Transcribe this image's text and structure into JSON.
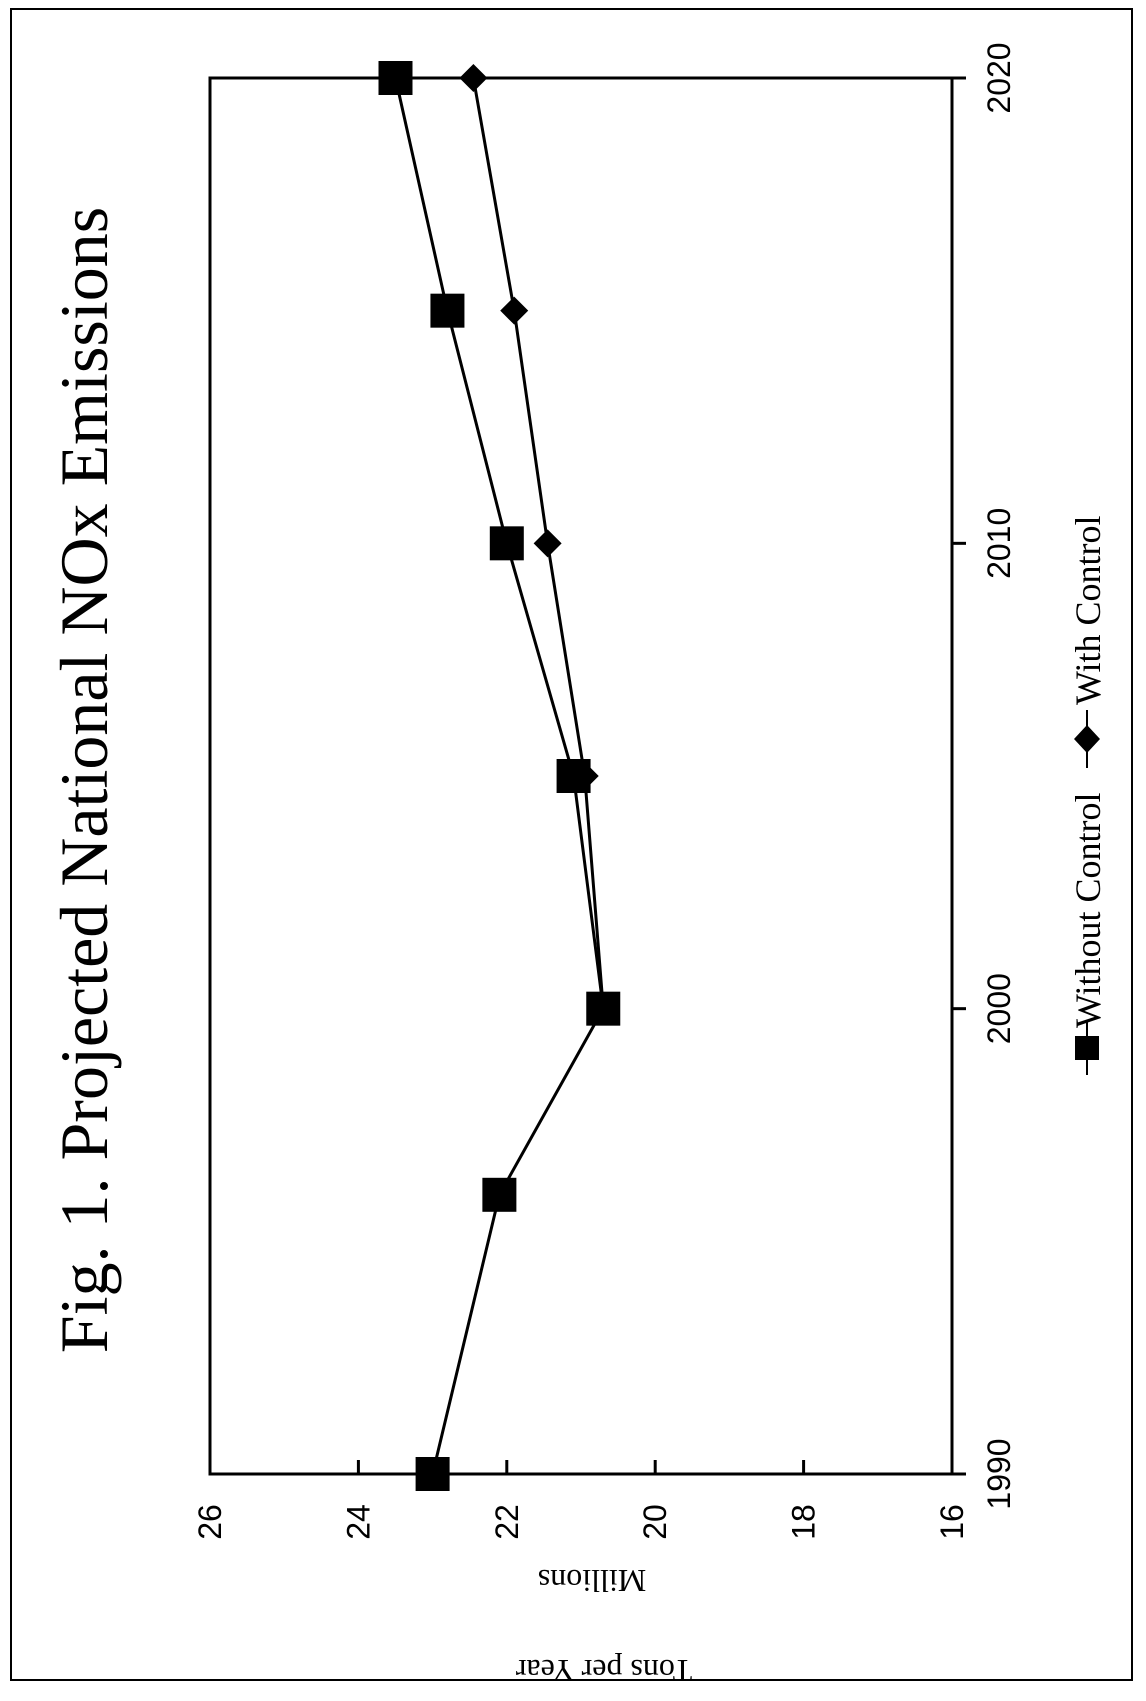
{
  "chart_data": {
    "type": "line",
    "title": "Fig. 1.  Projected National NOx Emissions",
    "ylabel": "Tons per Year",
    "ylabel_units": "Millions",
    "x_ticks": [
      "1990",
      "2000",
      "2010",
      "2020"
    ],
    "y_ticks": [
      "26",
      "24",
      "22",
      "20",
      "18",
      "16"
    ],
    "xlim": [
      1990,
      2020
    ],
    "ylim": [
      16,
      26
    ],
    "grid": false,
    "legend_position": "bottom",
    "series": [
      {
        "name": "Without Control",
        "marker": "square",
        "color": "#000000",
        "x": [
          1990,
          1996,
          2000,
          2005,
          2010,
          2015,
          2020
        ],
        "y": [
          23.0,
          22.1,
          20.7,
          21.1,
          22.0,
          22.8,
          23.5
        ]
      },
      {
        "name": "With Control",
        "marker": "diamond",
        "color": "#000000",
        "x": [
          2000,
          2005,
          2010,
          2015,
          2020
        ],
        "y": [
          20.7,
          20.95,
          21.45,
          21.9,
          22.45
        ]
      }
    ]
  }
}
